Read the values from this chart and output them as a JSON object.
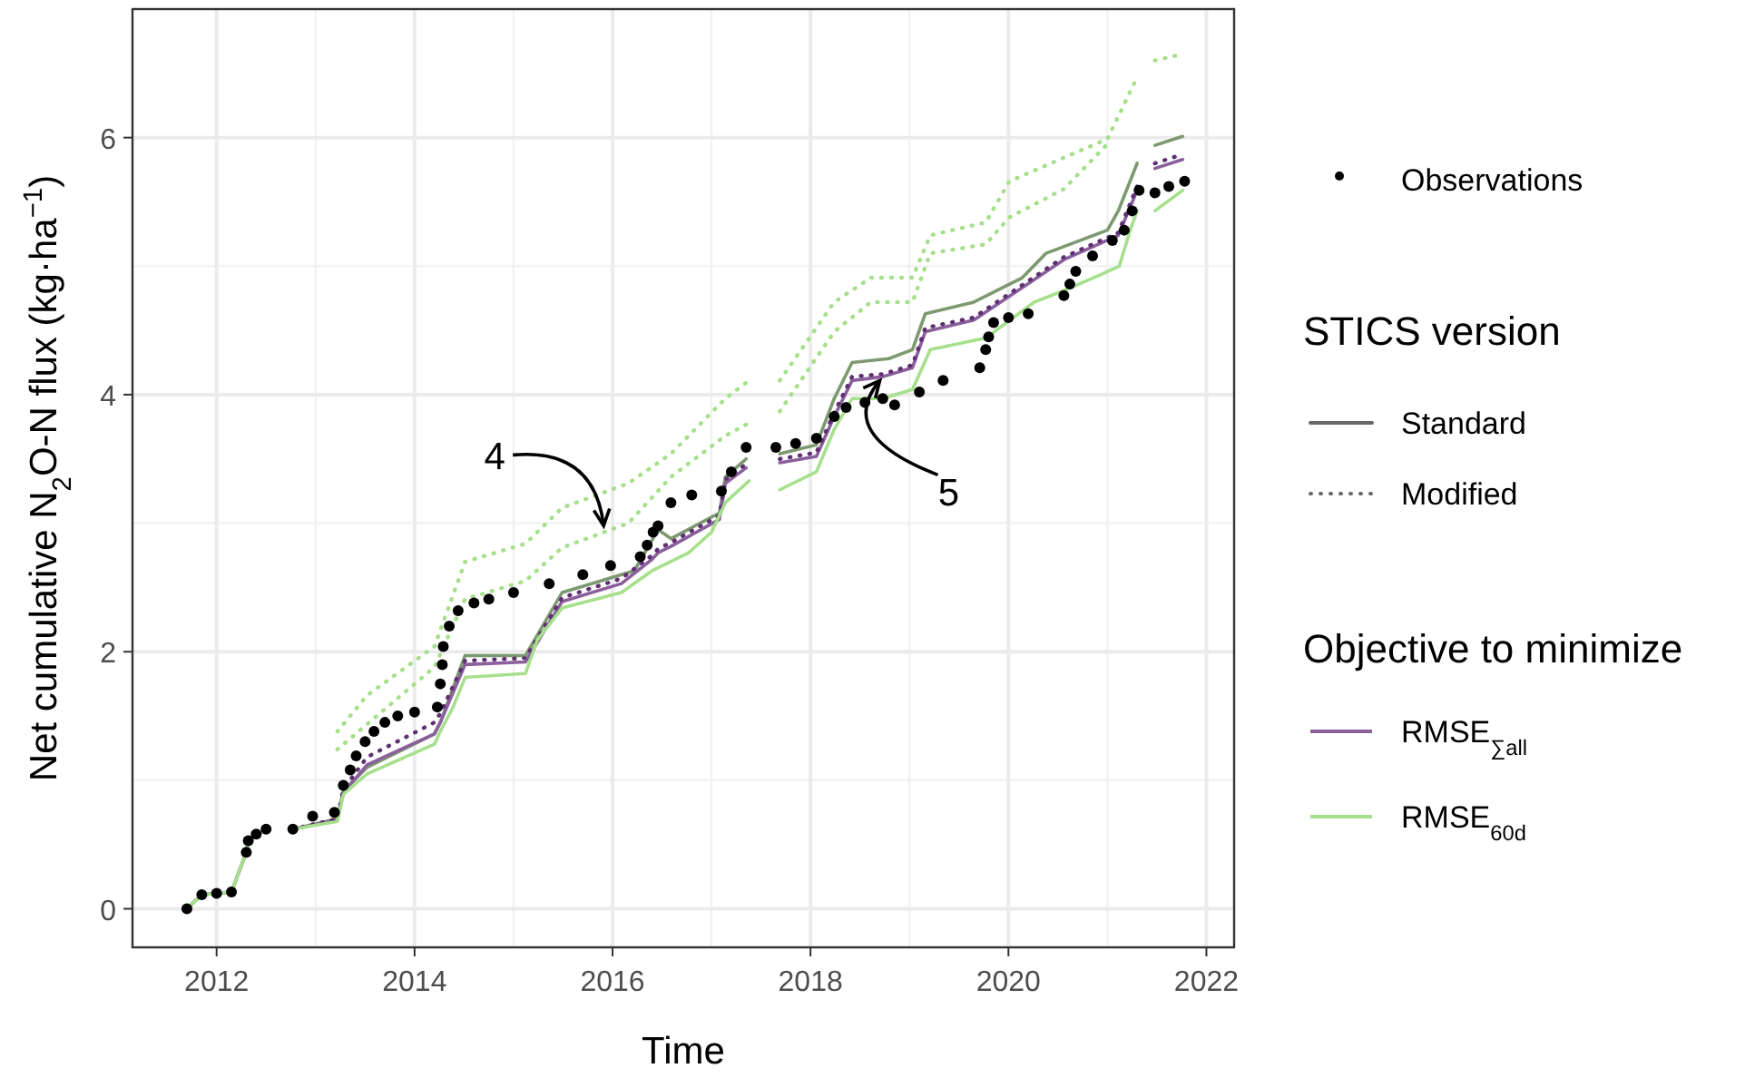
{
  "chart_data": {
    "type": "line",
    "xlabel": "Time",
    "ylabel": "Net cumulative N$_{2}$O-N flux (kg·ha$^{−1}$)",
    "legend_title": "Objective to minimize",
    "legend": "right",
    "grid": true,
    "xlim": [
      2011.15,
      2022.28
    ],
    "xticks": [
      2012,
      2014,
      2016,
      2018,
      2020,
      2022
    ],
    "ylim": [
      -0.3,
      7.0
    ],
    "yticks": [
      0,
      2,
      4,
      6
    ],
    "annotations": [
      "STICS version",
      "Standard",
      "Modified",
      {
        "text": "4",
        "x": 2015.91,
        "y": 2.98
      },
      {
        "text": "5",
        "x": 2018.7,
        "y": 4.11
      }
    ],
    "series": [
      {
        "color": "#7d9970",
        "line_style": "solid",
        "x": [
          2011.7,
          2011.85,
          2012.15,
          2012.3,
          2012.32,
          2012.5,
          2012.6,
          2012.77,
          2013.22,
          2013.28,
          2013.52,
          2014.2,
          2014.26,
          2014.51,
          2015.12,
          2015.49,
          2016.22,
          2016.46,
          2016.59,
          2017.08,
          2017.14,
          2017.35,
          2017.5,
          2017.69,
          2018.06,
          2018.24,
          2018.42,
          2018.79,
          2019.03,
          2019.16,
          2019.65,
          2020.14,
          2020.38,
          2021.0,
          2021.11,
          2021.3,
          2021.4,
          2021.48,
          2021.76
        ],
        "values": [
          0,
          0.11,
          0.13,
          0.44,
          0.53,
          0.62,
          null,
          0.62,
          0.7,
          0.92,
          1.1,
          1.36,
          1.45,
          1.97,
          1.97,
          2.46,
          2.63,
          2.95,
          2.88,
          3.08,
          3.36,
          3.5,
          null,
          3.54,
          3.61,
          3.97,
          4.25,
          4.28,
          4.35,
          4.63,
          4.72,
          4.91,
          5.1,
          5.28,
          5.43,
          5.8,
          null,
          5.94,
          6.01
        ]
      },
      {
        "name": "RMSE$_{∑all}$",
        "color": "#8a5f9c",
        "line_style": "solid",
        "x": [
          2011.7,
          2011.85,
          2012.15,
          2012.3,
          2012.32,
          2012.5,
          2012.6,
          2012.77,
          2013.22,
          2013.28,
          2013.52,
          2014.2,
          2014.26,
          2014.51,
          2015.12,
          2015.49,
          2016.09,
          2016.4,
          2016.46,
          2016.59,
          2017.08,
          2017.14,
          2017.35,
          2017.5,
          2017.69,
          2018.06,
          2018.24,
          2018.42,
          2018.73,
          2019.03,
          2019.16,
          2019.65,
          2020.56,
          2021.11,
          2021.3,
          2021.4,
          2021.48,
          2021.76
        ],
        "values": [
          0,
          0.11,
          0.13,
          0.44,
          0.53,
          0.62,
          null,
          0.62,
          0.69,
          0.9,
          1.12,
          1.36,
          1.45,
          1.9,
          1.92,
          2.39,
          2.53,
          2.72,
          2.77,
          2.82,
          3.03,
          3.31,
          3.43,
          null,
          3.47,
          3.52,
          3.83,
          4.11,
          4.14,
          4.21,
          4.49,
          4.58,
          5.05,
          5.24,
          5.59,
          null,
          5.76,
          5.83
        ]
      },
      {
        "color": "#5e2f72",
        "line_style": "dotted",
        "x": [
          2012.77,
          2013.22,
          2013.28,
          2013.52,
          2014.2,
          2014.26,
          2014.51,
          2015.12,
          2015.49,
          2016.09,
          2016.4,
          2016.46,
          2016.59,
          2017.08,
          2017.14,
          2017.35,
          2017.5,
          2017.69,
          2018.06,
          2018.24,
          2018.42,
          2018.73,
          2019.03,
          2019.16,
          2019.65,
          2020.56,
          2021.11,
          2021.3,
          2021.4,
          2021.48,
          2021.76
        ],
        "values": [
          0.62,
          0.7,
          0.93,
          1.18,
          1.45,
          1.52,
          1.93,
          1.95,
          2.42,
          2.57,
          2.75,
          2.8,
          2.85,
          3.06,
          3.34,
          3.46,
          null,
          3.5,
          3.55,
          3.86,
          4.14,
          4.16,
          4.23,
          4.52,
          4.6,
          5.07,
          5.26,
          5.62,
          null,
          5.8,
          5.87
        ]
      },
      {
        "name": "RMSE$_{60d}$",
        "color": "#a6e08c",
        "line_style": "solid",
        "x": [
          2011.7,
          2011.85,
          2012.15,
          2012.3,
          2012.32,
          2012.5,
          2012.6,
          2012.77,
          2013.22,
          2013.28,
          2013.52,
          2014.2,
          2014.26,
          2014.39,
          2014.51,
          2015.12,
          2015.24,
          2015.49,
          2016.09,
          2016.4,
          2016.77,
          2017.0,
          2017.14,
          2017.38,
          2017.5,
          2017.69,
          2018.06,
          2018.24,
          2018.42,
          2018.73,
          2019.03,
          2019.21,
          2019.77,
          2020.26,
          2020.56,
          2020.86,
          2021.12,
          2021.23,
          2021.3,
          2021.4,
          2021.48,
          2021.76
        ],
        "values": [
          0,
          0.11,
          0.13,
          0.44,
          0.53,
          0.62,
          null,
          0.62,
          0.68,
          0.89,
          1.05,
          1.28,
          1.38,
          1.57,
          1.8,
          1.83,
          2.09,
          2.34,
          2.46,
          2.63,
          2.77,
          2.93,
          3.16,
          3.33,
          null,
          3.26,
          3.4,
          3.73,
          3.97,
          3.97,
          4.04,
          4.35,
          4.44,
          4.72,
          4.81,
          4.91,
          5.0,
          5.28,
          5.43,
          null,
          5.43,
          5.59
        ]
      },
      {
        "color": "#a6e08c",
        "line_style": "dotted",
        "x": [
          2013.22,
          2013.52,
          2014.2,
          2014.51,
          2015.12,
          2015.49,
          2016.16,
          2016.59,
          2017.14,
          2017.38,
          2017.5,
          2017.69,
          2018.24,
          2018.61,
          2019.03,
          2019.21,
          2019.77,
          2020.01,
          2021.0,
          2021.3,
          2021.4,
          2021.48,
          2021.76
        ],
        "values": [
          1.38,
          1.66,
          2.04,
          2.7,
          2.84,
          3.12,
          3.31,
          3.54,
          3.97,
          4.11,
          null,
          4.11,
          4.72,
          4.91,
          4.91,
          5.24,
          5.34,
          5.66,
          5.99,
          6.47,
          null,
          6.6,
          6.65
        ]
      },
      {
        "color": "#a6e08c",
        "line_style": "dotted",
        "x": [
          2013.22,
          2014.2,
          2014.51,
          2015.12,
          2015.49,
          2016.16,
          2016.59,
          2017.14,
          2017.38,
          2017.5,
          2017.69,
          2018.24,
          2018.61,
          2019.03,
          2019.21,
          2019.77,
          2020.01,
          2020.56,
          2021.0
        ],
        "values": [
          1.24,
          1.88,
          2.41,
          2.55,
          2.81,
          3.0,
          3.36,
          3.68,
          3.78,
          null,
          3.87,
          4.49,
          4.72,
          4.72,
          5.1,
          5.17,
          5.38,
          5.6,
          5.95
        ]
      },
      {
        "name": "Observations",
        "type": "scatter",
        "marker": "circle",
        "color": "#000000",
        "x": [
          2011.7,
          2011.85,
          2012.0,
          2012.15,
          2012.3,
          2012.32,
          2012.4,
          2012.5,
          2012.77,
          2012.97,
          2013.19,
          2013.28,
          2013.35,
          2013.41,
          2013.5,
          2013.59,
          2013.7,
          2013.83,
          2014.0,
          2014.23,
          2014.26,
          2014.28,
          2014.29,
          2014.35,
          2014.44,
          2014.6,
          2014.75,
          2015.0,
          2015.36,
          2015.7,
          2015.98,
          2016.28,
          2016.35,
          2016.41,
          2016.46,
          2016.59,
          2016.8,
          2017.1,
          2017.2,
          2017.35,
          2017.65,
          2017.85,
          2018.06,
          2018.24,
          2018.36,
          2018.55,
          2018.73,
          2018.85,
          2019.1,
          2019.34,
          2019.71,
          2019.77,
          2019.8,
          2019.85,
          2020.0,
          2020.2,
          2020.56,
          2020.62,
          2020.68,
          2020.85,
          2021.05,
          2021.17,
          2021.25,
          2021.32,
          2021.48,
          2021.62,
          2021.78
        ],
        "values": [
          0,
          0.11,
          0.12,
          0.13,
          0.44,
          0.53,
          0.58,
          0.62,
          0.62,
          0.72,
          0.75,
          0.96,
          1.08,
          1.19,
          1.3,
          1.38,
          1.45,
          1.5,
          1.53,
          1.57,
          1.75,
          1.9,
          2.04,
          2.2,
          2.32,
          2.38,
          2.41,
          2.46,
          2.53,
          2.6,
          2.67,
          2.74,
          2.83,
          2.93,
          2.98,
          3.16,
          3.22,
          3.25,
          3.4,
          3.59,
          3.59,
          3.62,
          3.66,
          3.83,
          3.9,
          3.94,
          3.97,
          3.92,
          4.02,
          4.11,
          4.21,
          4.35,
          4.45,
          4.56,
          4.6,
          4.63,
          4.77,
          4.86,
          4.96,
          5.08,
          5.2,
          5.28,
          5.43,
          5.59,
          5.57,
          5.62,
          5.66
        ]
      }
    ]
  }
}
